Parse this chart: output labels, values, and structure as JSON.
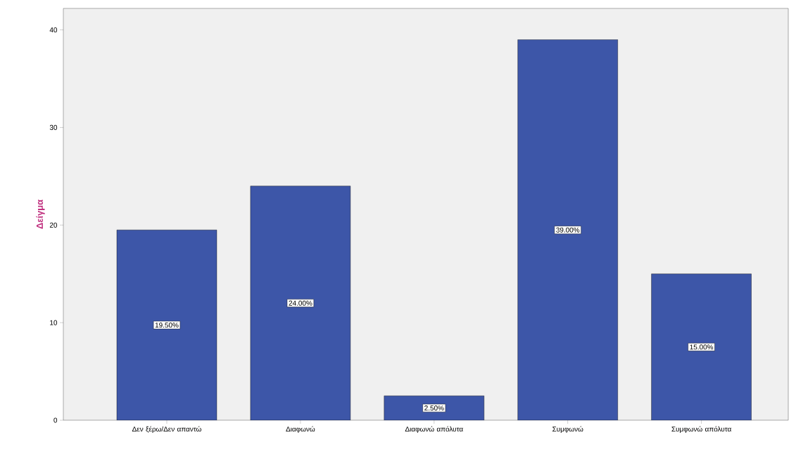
{
  "chart_data": {
    "type": "bar",
    "ylabel": "Δείγμα",
    "categories": [
      "Δεν ξέρω/Δεν απαντώ",
      "Διαφωνώ",
      "Διαφωνώ απόλυτα",
      "Συμφωνώ",
      "Συμφωνώ απόλυτα"
    ],
    "values": [
      19.5,
      24,
      2.5,
      39,
      15
    ],
    "value_labels": [
      "19.50%",
      "24.00%",
      "2.50%",
      "39.00%",
      "15.00%"
    ],
    "color": "#3d56a8",
    "ylim": [
      0,
      42.2
    ],
    "yticks": [
      0,
      10,
      20,
      30,
      40
    ],
    "grid": false
  }
}
